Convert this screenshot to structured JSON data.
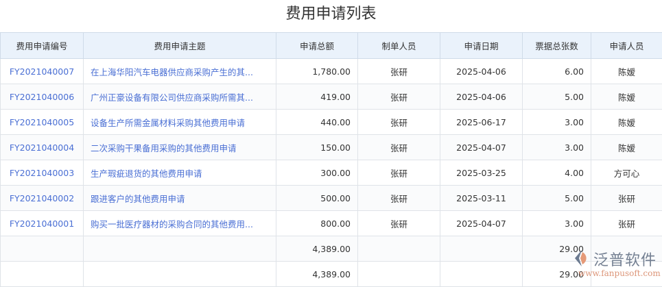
{
  "title": "费用申请列表",
  "columns": [
    "费用申请编号",
    "费用申请主题",
    "申请总额",
    "制单人员",
    "申请日期",
    "票据总张数",
    "申请人员"
  ],
  "rows": [
    [
      "FY2021040007",
      "在上海华阳汽车电器供应商采购产生的其...",
      "1,780.00",
      "张研",
      "2025-04-06",
      "6.00",
      "陈嫒"
    ],
    [
      "FY2021040006",
      "广州正豪设备有限公司供应商采购所需其...",
      "419.00",
      "张研",
      "2025-04-06",
      "5.00",
      "陈嫒"
    ],
    [
      "FY2021040005",
      "设备生产所需金属材料采购其他费用申请",
      "440.00",
      "张研",
      "2025-06-17",
      "3.00",
      "陈嫒"
    ],
    [
      "FY2021040004",
      "二次采购干果备用采购的其他费用申请",
      "150.00",
      "张研",
      "2025-04-07",
      "3.00",
      "陈嫒"
    ],
    [
      "FY2021040003",
      "生产瑕疵退货的其他费用申请",
      "300.00",
      "张研",
      "2025-03-25",
      "4.00",
      "方可心"
    ],
    [
      "FY2021040002",
      "跟进客户的其他费用申请",
      "500.00",
      "张研",
      "2025-03-11",
      "5.00",
      "张研"
    ],
    [
      "FY2021040001",
      "购买一批医疗器材的采购合同的其他费用...",
      "800.00",
      "张研",
      "2025-04-07",
      "3.00",
      "张研"
    ]
  ],
  "totals": [
    {
      "amount": "4,389.00",
      "count": "29.00"
    },
    {
      "amount": "4,389.00",
      "count": "29.00"
    }
  ],
  "watermark": {
    "name": "泛普软件",
    "url": "www.fanpusoft.com"
  },
  "colors": {
    "link": "#4a6fd4",
    "header_bg": "#eaf2fb"
  }
}
